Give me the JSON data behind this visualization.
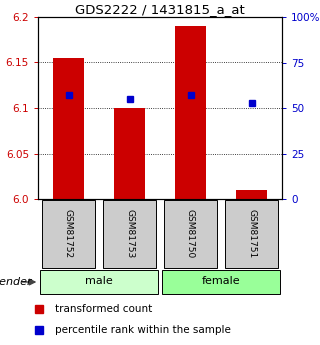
{
  "title": "GDS2222 / 1431815_a_at",
  "samples": [
    "GSM81752",
    "GSM81753",
    "GSM81750",
    "GSM81751"
  ],
  "gender": [
    "male",
    "male",
    "female",
    "female"
  ],
  "transformed_count": [
    6.155,
    6.1,
    6.19,
    6.01
  ],
  "percentile_rank": [
    57,
    55,
    57,
    53
  ],
  "bar_base": 6.0,
  "ylim_left": [
    6.0,
    6.2
  ],
  "ylim_right": [
    0,
    100
  ],
  "yticks_left": [
    6.0,
    6.05,
    6.1,
    6.15,
    6.2
  ],
  "yticks_right": [
    0,
    25,
    50,
    75,
    100
  ],
  "ytick_labels_right": [
    "0",
    "25",
    "50",
    "75",
    "100%"
  ],
  "bar_color": "#cc0000",
  "square_color": "#0000cc",
  "male_color": "#ccffcc",
  "female_color": "#99ff99",
  "label_color_left": "#cc0000",
  "label_color_right": "#0000cc",
  "grid_color": "#000000",
  "sample_box_color": "#cccccc",
  "legend_red_label": "transformed count",
  "legend_blue_label": "percentile rank within the sample",
  "gender_label": "gender",
  "bar_width": 0.5
}
